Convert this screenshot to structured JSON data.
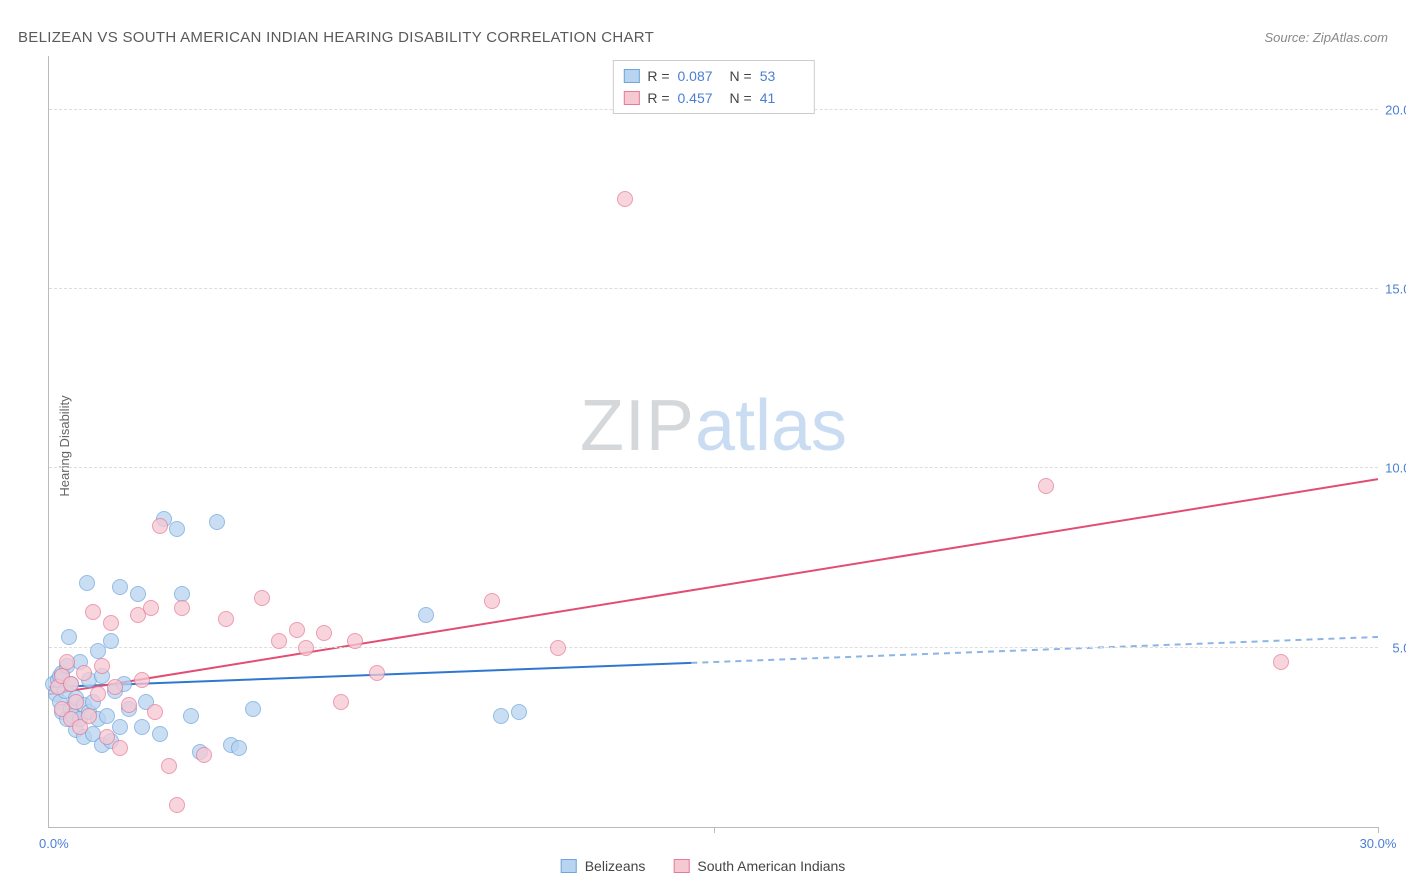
{
  "header": {
    "title": "BELIZEAN VS SOUTH AMERICAN INDIAN HEARING DISABILITY CORRELATION CHART",
    "source": "Source: ZipAtlas.com"
  },
  "y_axis_label": "Hearing Disability",
  "watermark": {
    "zip": "ZIP",
    "atlas": "atlas"
  },
  "chart": {
    "type": "scatter",
    "x_range": [
      0,
      30
    ],
    "y_range": [
      0,
      21.5
    ],
    "x_ticks": [
      15,
      30
    ],
    "x_tick_labels": [
      "",
      "30.0%"
    ],
    "x_origin_label": "0.0%",
    "y_ticks": [
      5,
      10,
      15,
      20
    ],
    "y_tick_labels": [
      "5.0%",
      "10.0%",
      "15.0%",
      "20.0%"
    ],
    "grid_color": "#dddddd",
    "axis_color": "#bbbbbb",
    "tick_label_color": "#4a7fd4",
    "background_color": "#ffffff",
    "marker_radius": 8
  },
  "series": [
    {
      "name": "Belizeans",
      "fill": "#b8d4f0",
      "stroke": "#6fa6de",
      "r": "0.087",
      "n": "53",
      "trend": {
        "x1": 0,
        "y1": 3.9,
        "x2": 30,
        "y2": 5.3,
        "solid_until_x": 14.5,
        "color": "#2f78d0",
        "width": 2
      },
      "points": [
        [
          0.1,
          4.0
        ],
        [
          0.15,
          3.7
        ],
        [
          0.2,
          4.1
        ],
        [
          0.25,
          3.5
        ],
        [
          0.25,
          4.2
        ],
        [
          0.3,
          3.2
        ],
        [
          0.3,
          4.3
        ],
        [
          0.35,
          3.8
        ],
        [
          0.4,
          3.0
        ],
        [
          0.4,
          4.5
        ],
        [
          0.45,
          5.3
        ],
        [
          0.5,
          3.3
        ],
        [
          0.5,
          4.0
        ],
        [
          0.55,
          3.1
        ],
        [
          0.6,
          2.7
        ],
        [
          0.6,
          3.6
        ],
        [
          0.7,
          4.6
        ],
        [
          0.7,
          3.0
        ],
        [
          0.8,
          3.4
        ],
        [
          0.8,
          2.5
        ],
        [
          0.85,
          6.8
        ],
        [
          0.9,
          4.1
        ],
        [
          0.9,
          3.2
        ],
        [
          1.0,
          2.6
        ],
        [
          1.0,
          3.5
        ],
        [
          1.1,
          4.9
        ],
        [
          1.1,
          3.0
        ],
        [
          1.2,
          2.3
        ],
        [
          1.2,
          4.2
        ],
        [
          1.3,
          3.1
        ],
        [
          1.4,
          5.2
        ],
        [
          1.4,
          2.4
        ],
        [
          1.5,
          3.8
        ],
        [
          1.6,
          2.8
        ],
        [
          1.7,
          4.0
        ],
        [
          1.8,
          3.3
        ],
        [
          2.0,
          6.5
        ],
        [
          2.1,
          2.8
        ],
        [
          2.2,
          3.5
        ],
        [
          2.5,
          2.6
        ],
        [
          2.6,
          8.6
        ],
        [
          2.9,
          8.3
        ],
        [
          3.0,
          6.5
        ],
        [
          3.2,
          3.1
        ],
        [
          3.4,
          2.1
        ],
        [
          4.1,
          2.3
        ],
        [
          4.3,
          2.2
        ],
        [
          4.6,
          3.3
        ],
        [
          8.5,
          5.9
        ],
        [
          10.2,
          3.1
        ],
        [
          10.6,
          3.2
        ],
        [
          3.8,
          8.5
        ],
        [
          1.6,
          6.7
        ]
      ]
    },
    {
      "name": "South American Indians",
      "fill": "#f6c8d2",
      "stroke": "#e77b97",
      "r": "0.457",
      "n": "41",
      "trend": {
        "x1": 0,
        "y1": 3.7,
        "x2": 30,
        "y2": 9.7,
        "solid_until_x": 30,
        "color": "#e24d73",
        "width": 2
      },
      "points": [
        [
          0.2,
          3.9
        ],
        [
          0.3,
          4.2
        ],
        [
          0.3,
          3.3
        ],
        [
          0.4,
          4.6
        ],
        [
          0.5,
          3.0
        ],
        [
          0.5,
          4.0
        ],
        [
          0.6,
          3.5
        ],
        [
          0.7,
          2.8
        ],
        [
          0.8,
          4.3
        ],
        [
          0.9,
          3.1
        ],
        [
          1.0,
          6.0
        ],
        [
          1.1,
          3.7
        ],
        [
          1.2,
          4.5
        ],
        [
          1.3,
          2.5
        ],
        [
          1.4,
          5.7
        ],
        [
          1.5,
          3.9
        ],
        [
          1.6,
          2.2
        ],
        [
          1.8,
          3.4
        ],
        [
          2.0,
          5.9
        ],
        [
          2.1,
          4.1
        ],
        [
          2.3,
          6.1
        ],
        [
          2.4,
          3.2
        ],
        [
          2.5,
          8.4
        ],
        [
          2.7,
          1.7
        ],
        [
          3.0,
          6.1
        ],
        [
          3.5,
          2.0
        ],
        [
          4.0,
          5.8
        ],
        [
          4.8,
          6.4
        ],
        [
          5.2,
          5.2
        ],
        [
          5.6,
          5.5
        ],
        [
          5.8,
          5.0
        ],
        [
          6.2,
          5.4
        ],
        [
          6.6,
          3.5
        ],
        [
          6.9,
          5.2
        ],
        [
          7.4,
          4.3
        ],
        [
          10.0,
          6.3
        ],
        [
          11.5,
          5.0
        ],
        [
          13.0,
          17.5
        ],
        [
          22.5,
          9.5
        ],
        [
          27.8,
          4.6
        ],
        [
          2.9,
          0.6
        ]
      ]
    }
  ],
  "stats_box": {
    "r_label": "R =",
    "n_label": "N ="
  },
  "bottom_legend": {
    "items": [
      "Belizeans",
      "South American Indians"
    ]
  }
}
